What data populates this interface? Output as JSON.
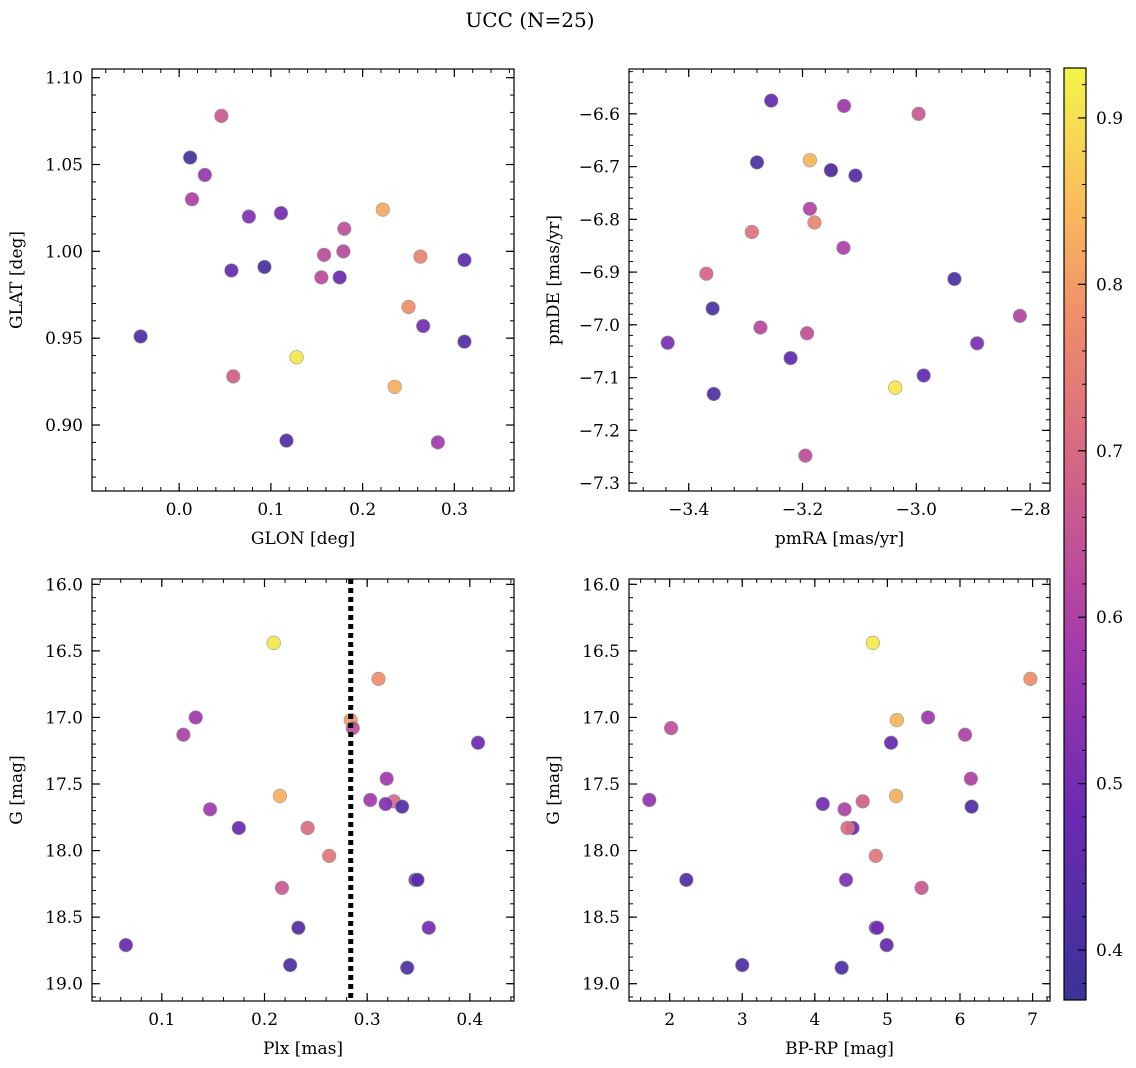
{
  "title": "UCC (N=25)",
  "colorbar": {
    "min": 0.37,
    "max": 0.93,
    "ticks": [
      0.4,
      0.5,
      0.6,
      0.7,
      0.8,
      0.9
    ],
    "tick_labels": [
      "0.4",
      "0.5",
      "0.6",
      "0.7",
      "0.8",
      "0.9"
    ]
  },
  "colormap_stops": [
    {
      "t": 0.0,
      "color": "#3b3398"
    },
    {
      "t": 0.2,
      "color": "#6a2ab2"
    },
    {
      "t": 0.38,
      "color": "#a53aac"
    },
    {
      "t": 0.55,
      "color": "#d0608a"
    },
    {
      "t": 0.72,
      "color": "#ee8a6c"
    },
    {
      "t": 0.86,
      "color": "#fbbd5a"
    },
    {
      "t": 1.0,
      "color": "#f2f54a"
    }
  ],
  "chart_data": [
    {
      "id": "glon-glat",
      "type": "scatter",
      "xlabel": "GLON [deg]",
      "ylabel": "GLAT [deg]",
      "xlim": [
        -0.095,
        0.365
      ],
      "ylim": [
        0.862,
        1.105
      ],
      "xticks": [
        0.0,
        0.1,
        0.2,
        0.3
      ],
      "xtick_labels": [
        "0.0",
        "0.1",
        "0.2",
        "0.3"
      ],
      "yticks": [
        0.9,
        0.95,
        1.0,
        1.05,
        1.1
      ],
      "ytick_labels": [
        "0.90",
        "0.95",
        "1.00",
        "1.05",
        "1.10"
      ],
      "x_minor_step": 0.02,
      "y_minor_step": 0.01,
      "points": [
        {
          "x": 0.046,
          "y": 1.078,
          "c": 0.66
        },
        {
          "x": 0.012,
          "y": 1.054,
          "c": 0.4
        },
        {
          "x": 0.028,
          "y": 1.044,
          "c": 0.56
        },
        {
          "x": 0.014,
          "y": 1.03,
          "c": 0.6
        },
        {
          "x": 0.076,
          "y": 1.02,
          "c": 0.52
        },
        {
          "x": 0.111,
          "y": 1.022,
          "c": 0.5
        },
        {
          "x": 0.222,
          "y": 1.024,
          "c": 0.82
        },
        {
          "x": 0.18,
          "y": 1.013,
          "c": 0.64
        },
        {
          "x": 0.158,
          "y": 0.998,
          "c": 0.63
        },
        {
          "x": 0.179,
          "y": 1.0,
          "c": 0.62
        },
        {
          "x": 0.263,
          "y": 0.997,
          "c": 0.76
        },
        {
          "x": 0.311,
          "y": 0.995,
          "c": 0.45
        },
        {
          "x": 0.057,
          "y": 0.989,
          "c": 0.47
        },
        {
          "x": 0.093,
          "y": 0.991,
          "c": 0.4
        },
        {
          "x": 0.155,
          "y": 0.985,
          "c": 0.63
        },
        {
          "x": 0.175,
          "y": 0.985,
          "c": 0.48
        },
        {
          "x": 0.25,
          "y": 0.968,
          "c": 0.78
        },
        {
          "x": 0.266,
          "y": 0.957,
          "c": 0.5
        },
        {
          "x": -0.042,
          "y": 0.951,
          "c": 0.41
        },
        {
          "x": 0.311,
          "y": 0.948,
          "c": 0.43
        },
        {
          "x": 0.128,
          "y": 0.939,
          "c": 0.91
        },
        {
          "x": 0.059,
          "y": 0.928,
          "c": 0.68
        },
        {
          "x": 0.235,
          "y": 0.922,
          "c": 0.83
        },
        {
          "x": 0.117,
          "y": 0.891,
          "c": 0.42
        },
        {
          "x": 0.282,
          "y": 0.89,
          "c": 0.58
        }
      ]
    },
    {
      "id": "pmra-pmde",
      "type": "scatter",
      "xlabel": "pmRA [mas/yr]",
      "ylabel": "pmDE [mas/yr]",
      "xlim": [
        -3.505,
        -2.765
      ],
      "ylim": [
        -7.315,
        -6.515
      ],
      "xticks": [
        -3.4,
        -3.2,
        -3.0,
        -2.8
      ],
      "xtick_labels": [
        "−3.4",
        "−3.2",
        "−3.0",
        "−2.8"
      ],
      "yticks": [
        -7.3,
        -7.2,
        -7.1,
        -7.0,
        -6.9,
        -6.8,
        -6.7,
        -6.6
      ],
      "ytick_labels": [
        "−7.3",
        "−7.2",
        "−7.1",
        "−7.0",
        "−6.9",
        "−6.8",
        "−6.7",
        "−6.6"
      ],
      "x_minor_step": 0.04,
      "y_minor_step": 0.02,
      "points": [
        {
          "x": -3.255,
          "y": -6.575,
          "c": 0.47
        },
        {
          "x": -3.127,
          "y": -6.585,
          "c": 0.57
        },
        {
          "x": -2.996,
          "y": -6.6,
          "c": 0.66
        },
        {
          "x": -3.28,
          "y": -6.692,
          "c": 0.41
        },
        {
          "x": -3.187,
          "y": -6.688,
          "c": 0.84
        },
        {
          "x": -3.15,
          "y": -6.707,
          "c": 0.8
        },
        {
          "x": -3.15,
          "y": -6.707,
          "c": 0.42
        },
        {
          "x": -3.107,
          "y": -6.717,
          "c": 0.42
        },
        {
          "x": -3.187,
          "y": -6.78,
          "c": 0.61
        },
        {
          "x": -3.179,
          "y": -6.806,
          "c": 0.76
        },
        {
          "x": -3.289,
          "y": -6.824,
          "c": 0.72
        },
        {
          "x": -3.128,
          "y": -6.854,
          "c": 0.6
        },
        {
          "x": -3.369,
          "y": -6.903,
          "c": 0.69
        },
        {
          "x": -2.933,
          "y": -6.913,
          "c": 0.41
        },
        {
          "x": -3.358,
          "y": -6.969,
          "c": 0.41
        },
        {
          "x": -2.818,
          "y": -6.983,
          "c": 0.61
        },
        {
          "x": -3.274,
          "y": -7.005,
          "c": 0.62
        },
        {
          "x": -3.192,
          "y": -7.016,
          "c": 0.64
        },
        {
          "x": -3.437,
          "y": -7.034,
          "c": 0.51
        },
        {
          "x": -2.893,
          "y": -7.035,
          "c": 0.51
        },
        {
          "x": -3.221,
          "y": -7.063,
          "c": 0.46
        },
        {
          "x": -2.987,
          "y": -7.096,
          "c": 0.46
        },
        {
          "x": -3.037,
          "y": -7.119,
          "c": 0.91
        },
        {
          "x": -3.356,
          "y": -7.131,
          "c": 0.42
        },
        {
          "x": -3.195,
          "y": -7.248,
          "c": 0.63
        }
      ]
    },
    {
      "id": "plx-g",
      "type": "scatter",
      "xlabel": "Plx [mas]",
      "ylabel": "G [mag]",
      "xlim": [
        0.032,
        0.443
      ],
      "ylim": [
        19.13,
        15.96
      ],
      "xticks": [
        0.1,
        0.2,
        0.3,
        0.4
      ],
      "xtick_labels": [
        "0.1",
        "0.2",
        "0.3",
        "0.4"
      ],
      "yticks": [
        16.0,
        16.5,
        17.0,
        17.5,
        18.0,
        18.5,
        19.0
      ],
      "ytick_labels": [
        "16.0",
        "16.5",
        "17.0",
        "17.5",
        "18.0",
        "18.5",
        "19.0"
      ],
      "x_minor_step": 0.02,
      "y_minor_step": 0.1,
      "vline": {
        "x": 0.284,
        "style": "dotted"
      },
      "points": [
        {
          "x": 0.209,
          "y": 16.44,
          "c": 0.91
        },
        {
          "x": 0.311,
          "y": 16.71,
          "c": 0.78
        },
        {
          "x": 0.133,
          "y": 17.0,
          "c": 0.57
        },
        {
          "x": 0.284,
          "y": 17.02,
          "c": 0.8
        },
        {
          "x": 0.286,
          "y": 17.08,
          "c": 0.64
        },
        {
          "x": 0.121,
          "y": 17.13,
          "c": 0.6
        },
        {
          "x": 0.408,
          "y": 17.19,
          "c": 0.49
        },
        {
          "x": 0.319,
          "y": 17.46,
          "c": 0.58
        },
        {
          "x": 0.215,
          "y": 17.59,
          "c": 0.83
        },
        {
          "x": 0.303,
          "y": 17.62,
          "c": 0.58
        },
        {
          "x": 0.326,
          "y": 17.63,
          "c": 0.7
        },
        {
          "x": 0.318,
          "y": 17.65,
          "c": 0.52
        },
        {
          "x": 0.334,
          "y": 17.67,
          "c": 0.43
        },
        {
          "x": 0.147,
          "y": 17.69,
          "c": 0.58
        },
        {
          "x": 0.175,
          "y": 17.83,
          "c": 0.48
        },
        {
          "x": 0.242,
          "y": 17.83,
          "c": 0.71
        },
        {
          "x": 0.263,
          "y": 18.04,
          "c": 0.73
        },
        {
          "x": 0.347,
          "y": 18.22,
          "c": 0.52
        },
        {
          "x": 0.349,
          "y": 18.22,
          "c": 0.44
        },
        {
          "x": 0.217,
          "y": 18.28,
          "c": 0.66
        },
        {
          "x": 0.233,
          "y": 18.58,
          "c": 0.42
        },
        {
          "x": 0.36,
          "y": 18.58,
          "c": 0.5
        },
        {
          "x": 0.065,
          "y": 18.71,
          "c": 0.47
        },
        {
          "x": 0.225,
          "y": 18.86,
          "c": 0.42
        },
        {
          "x": 0.339,
          "y": 18.88,
          "c": 0.42
        }
      ]
    },
    {
      "id": "bprp-g",
      "type": "scatter",
      "xlabel": "BP-RP [mag]",
      "ylabel": "G [mag]",
      "xlim": [
        1.44,
        7.24
      ],
      "ylim": [
        19.13,
        15.96
      ],
      "xticks": [
        2,
        3,
        4,
        5,
        6,
        7
      ],
      "xtick_labels": [
        "2",
        "3",
        "4",
        "5",
        "6",
        "7"
      ],
      "yticks": [
        16.0,
        16.5,
        17.0,
        17.5,
        18.0,
        18.5,
        19.0
      ],
      "ytick_labels": [
        "16.0",
        "16.5",
        "17.0",
        "17.5",
        "18.0",
        "18.5",
        "19.0"
      ],
      "x_minor_step": 0.2,
      "y_minor_step": 0.1,
      "points": [
        {
          "x": 4.8,
          "y": 16.44,
          "c": 0.91
        },
        {
          "x": 6.97,
          "y": 16.71,
          "c": 0.78
        },
        {
          "x": 5.56,
          "y": 17.0,
          "c": 0.57
        },
        {
          "x": 5.13,
          "y": 17.02,
          "c": 0.84
        },
        {
          "x": 2.02,
          "y": 17.08,
          "c": 0.64
        },
        {
          "x": 6.07,
          "y": 17.13,
          "c": 0.6
        },
        {
          "x": 5.05,
          "y": 17.19,
          "c": 0.47
        },
        {
          "x": 6.15,
          "y": 17.46,
          "c": 0.6
        },
        {
          "x": 5.12,
          "y": 17.59,
          "c": 0.83
        },
        {
          "x": 1.72,
          "y": 17.62,
          "c": 0.55
        },
        {
          "x": 4.66,
          "y": 17.63,
          "c": 0.68
        },
        {
          "x": 4.11,
          "y": 17.65,
          "c": 0.5
        },
        {
          "x": 6.16,
          "y": 17.67,
          "c": 0.42
        },
        {
          "x": 4.41,
          "y": 17.69,
          "c": 0.6
        },
        {
          "x": 4.52,
          "y": 17.83,
          "c": 0.49
        },
        {
          "x": 4.45,
          "y": 17.83,
          "c": 0.71
        },
        {
          "x": 4.84,
          "y": 18.04,
          "c": 0.73
        },
        {
          "x": 2.23,
          "y": 18.22,
          "c": 0.42
        },
        {
          "x": 4.43,
          "y": 18.22,
          "c": 0.52
        },
        {
          "x": 5.47,
          "y": 18.28,
          "c": 0.66
        },
        {
          "x": 4.84,
          "y": 18.58,
          "c": 0.42
        },
        {
          "x": 4.86,
          "y": 18.58,
          "c": 0.5
        },
        {
          "x": 4.99,
          "y": 18.71,
          "c": 0.47
        },
        {
          "x": 3.0,
          "y": 18.86,
          "c": 0.42
        },
        {
          "x": 4.37,
          "y": 18.88,
          "c": 0.42
        }
      ]
    }
  ]
}
